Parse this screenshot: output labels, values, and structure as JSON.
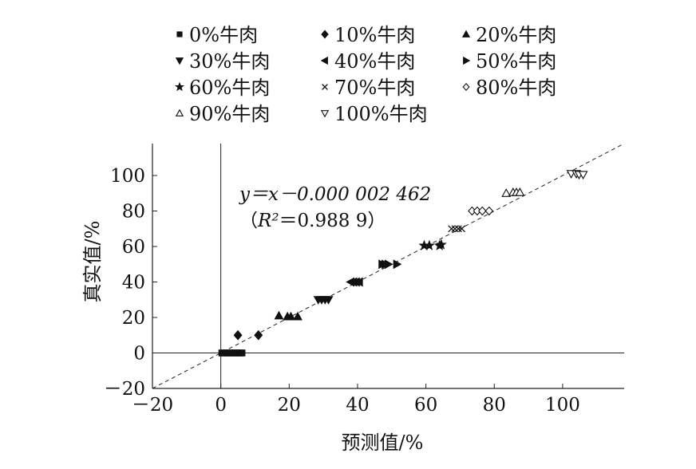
{
  "chart_data": {
    "type": "scatter",
    "xlabel": "预测值/%",
    "ylabel": "真实值/%",
    "xlim": [
      -20,
      118
    ],
    "ylim": [
      -20,
      118
    ],
    "x_ticks": [
      -20,
      0,
      20,
      40,
      60,
      80,
      100
    ],
    "y_ticks": [
      -20,
      0,
      20,
      40,
      60,
      80,
      100
    ],
    "x_tick_labels": [
      "－20",
      "0",
      "20",
      "40",
      "60",
      "80",
      "100"
    ],
    "y_tick_labels": [
      "－20",
      "0",
      "20",
      "40",
      "60",
      "80",
      "100"
    ],
    "grid": false,
    "legend_position": "top",
    "annotation": {
      "equation": "y＝x－0.000 002 462",
      "r2_prefix": "（",
      "r2_symbol": "R²",
      "r2_value": "＝0.988 9）"
    },
    "fit_line": {
      "slope": 1,
      "intercept": -2.462e-06,
      "style": "dashed"
    },
    "series": [
      {
        "name": "0%牛肉",
        "marker": "square",
        "points": [
          [
            0.3,
            0
          ],
          [
            1,
            0
          ],
          [
            1.8,
            0
          ],
          [
            2.5,
            0
          ],
          [
            3.2,
            0
          ],
          [
            4,
            0
          ],
          [
            4.8,
            0
          ],
          [
            5.6,
            0
          ],
          [
            6.2,
            0
          ]
        ]
      },
      {
        "name": "10%牛肉",
        "marker": "diamond",
        "points": [
          [
            5,
            10
          ],
          [
            11,
            10
          ]
        ]
      },
      {
        "name": "20%牛肉",
        "marker": "triangle-up",
        "points": [
          [
            17,
            21
          ],
          [
            19.5,
            20.5
          ],
          [
            20.5,
            20.5
          ],
          [
            22.5,
            20.5
          ]
        ]
      },
      {
        "name": "30%牛肉",
        "marker": "triangle-down",
        "points": [
          [
            28.5,
            30
          ],
          [
            29.5,
            30
          ],
          [
            30.5,
            30
          ],
          [
            31.5,
            30
          ]
        ]
      },
      {
        "name": "40%牛肉",
        "marker": "triangle-left",
        "points": [
          [
            38,
            40
          ],
          [
            38.8,
            40
          ],
          [
            39.6,
            40
          ],
          [
            40.5,
            40
          ]
        ]
      },
      {
        "name": "50%牛肉",
        "marker": "triangle-right",
        "points": [
          [
            47.2,
            50
          ],
          [
            48.1,
            50
          ],
          [
            49,
            50
          ],
          [
            51.5,
            50
          ]
        ]
      },
      {
        "name": "60%牛肉",
        "marker": "star",
        "points": [
          [
            59.5,
            60.5
          ],
          [
            61,
            60.5
          ],
          [
            64,
            60.5
          ],
          [
            64.5,
            61
          ]
        ]
      },
      {
        "name": "70%牛肉",
        "marker": "x",
        "points": [
          [
            67.5,
            70
          ],
          [
            68.5,
            70
          ],
          [
            69.5,
            70
          ],
          [
            70.5,
            70
          ]
        ]
      },
      {
        "name": "80%牛肉",
        "marker": "diamond-open",
        "points": [
          [
            73.5,
            80
          ],
          [
            75,
            80
          ],
          [
            76.5,
            80
          ],
          [
            78.5,
            80
          ]
        ]
      },
      {
        "name": "90%牛肉",
        "marker": "triangle-up-open",
        "points": [
          [
            83.5,
            90
          ],
          [
            85.5,
            90.5
          ],
          [
            86.5,
            90.5
          ],
          [
            87.5,
            90.5
          ]
        ]
      },
      {
        "name": "100%牛肉",
        "marker": "triangle-down-open",
        "points": [
          [
            102.5,
            101
          ],
          [
            104,
            101
          ],
          [
            104.8,
            100.5
          ],
          [
            106,
            100.5
          ]
        ]
      }
    ],
    "legend_order": [
      0,
      3,
      6,
      9,
      1,
      4,
      7,
      10,
      2,
      5,
      8
    ]
  }
}
